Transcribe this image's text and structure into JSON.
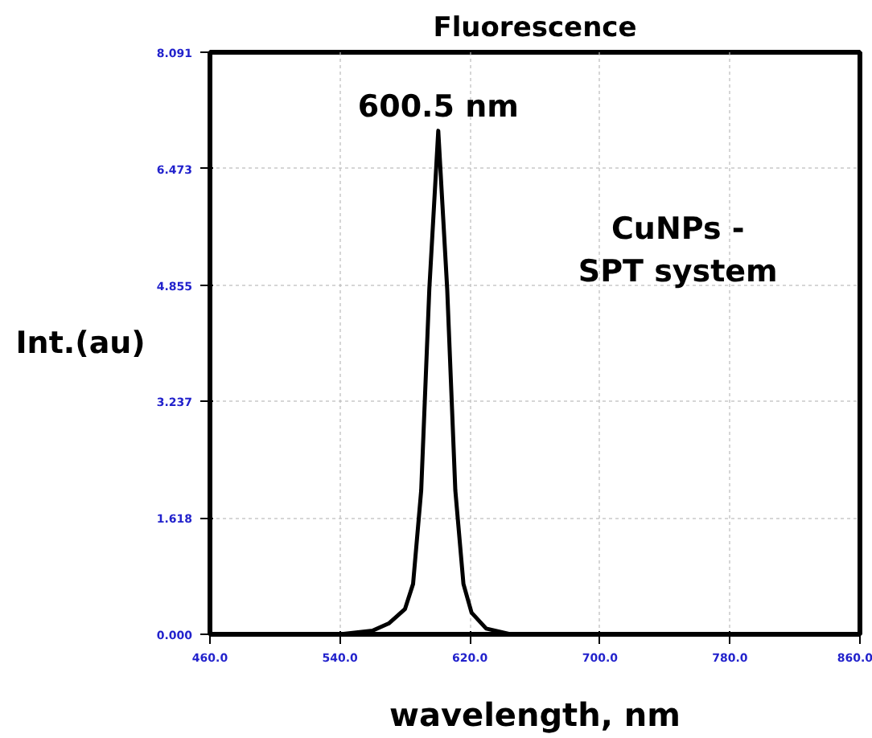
{
  "chart_data": {
    "type": "line",
    "title": "Fluorescence",
    "xlabel": "wavelength, nm",
    "ylabel": "Int.(au)",
    "x": [
      460,
      540,
      560,
      570,
      580,
      585,
      590,
      595,
      600.5,
      606,
      611,
      616,
      621,
      630,
      645,
      860
    ],
    "series": [
      {
        "color": "#000000",
        "values": [
          0,
          0,
          0.05,
          0.15,
          0.35,
          0.7,
          2.0,
          4.8,
          7.0,
          4.8,
          2.0,
          0.7,
          0.3,
          0.08,
          0,
          0
        ]
      }
    ],
    "xlim": [
      460,
      860
    ],
    "xticks": [
      {
        "value": 460,
        "label": "460.0"
      },
      {
        "value": 540,
        "label": "540.0"
      },
      {
        "value": 620,
        "label": "620.0"
      },
      {
        "value": 700,
        "label": "700.0"
      },
      {
        "value": 780,
        "label": "780.0"
      },
      {
        "value": 860,
        "label": "860.0"
      }
    ],
    "ylim": [
      0,
      8.091
    ],
    "yticks": [
      {
        "value": 0,
        "label": "0.000"
      },
      {
        "value": 1.618,
        "label": "1.618"
      },
      {
        "value": 3.237,
        "label": "3.237"
      },
      {
        "value": 4.855,
        "label": "4.855"
      },
      {
        "value": 6.473,
        "label": "6.473"
      },
      {
        "value": 8.091,
        "label": "8.091"
      }
    ],
    "grid": true,
    "annotations": [
      {
        "text": "600.5 nm",
        "x": 600.5,
        "y": 7.0
      },
      "CuNPs -\nSPT system"
    ]
  }
}
